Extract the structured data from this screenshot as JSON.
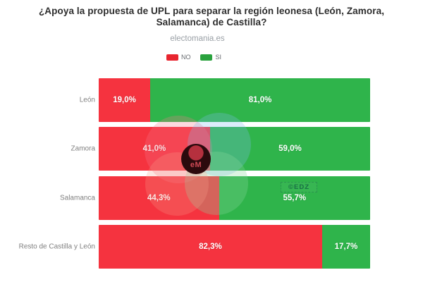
{
  "header": {
    "title_line1": "¿Apoya la propuesta de UPL para separar la región leonesa (León, Zamora,",
    "title_line2": "Salamanca) de Castilla?",
    "subtitle": "electomania.es"
  },
  "legend": {
    "items": [
      {
        "label": "NO",
        "color": "#e8252f"
      },
      {
        "label": "SI",
        "color": "#2aa23e"
      }
    ]
  },
  "watermarks": {
    "center_logo_text": "eM",
    "corner_text": "©EDZ"
  },
  "chart_data": {
    "type": "bar",
    "orientation": "horizontal-stacked",
    "title": "¿Apoya la propuesta de UPL para separar la región leonesa (León, Zamora, Salamanca) de Castilla?",
    "subtitle": "electomania.es",
    "legend_position": "top-center",
    "grid": false,
    "xlim": [
      0,
      100
    ],
    "categories": [
      "León",
      "Zamora",
      "Salamanca",
      "Resto de Castilla y León"
    ],
    "series": [
      {
        "name": "NO",
        "color": "#f5333f",
        "values": [
          19.0,
          41.0,
          44.3,
          82.3
        ],
        "labels": [
          "19,0%",
          "41,0%",
          "44,3%",
          "82,3%"
        ]
      },
      {
        "name": "SI",
        "color": "#2fb44b",
        "values": [
          81.0,
          59.0,
          55.7,
          17.7
        ],
        "labels": [
          "81,0%",
          "59,0%",
          "55,7%",
          "17,7%"
        ]
      }
    ]
  }
}
